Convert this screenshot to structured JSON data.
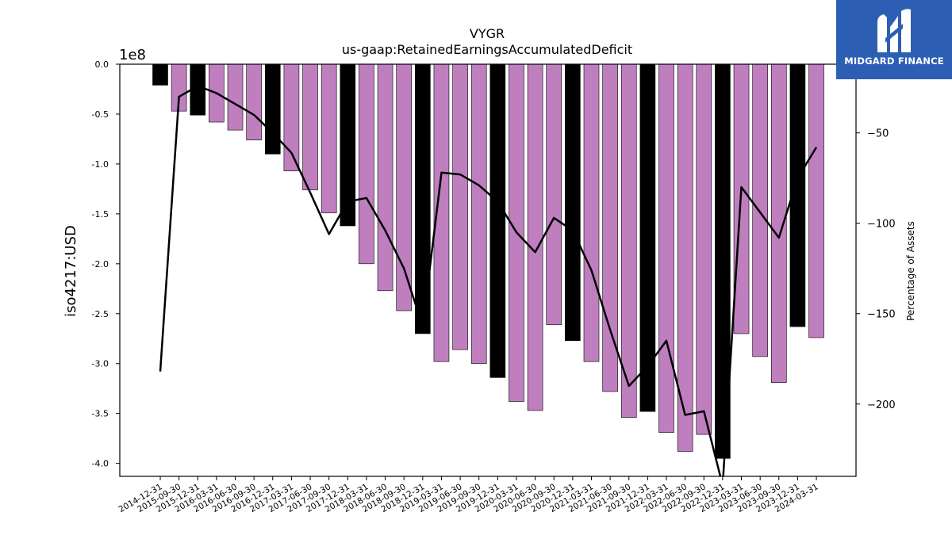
{
  "brand": {
    "name": "MIDGARD FINANCE",
    "logo_icon": "midgard-m-logo-icon",
    "background_color": "#2c5fb3"
  },
  "chart_data": {
    "type": "bar",
    "title": "VYGR",
    "subtitle": "us-gaap:RetainedEarningsAccumulatedDeficit",
    "ylabel": "iso4217:USD",
    "y_offset_label": "1e8",
    "y2label": "Percentage of Assets",
    "ylim": [
      -4.13,
      0
    ],
    "y_ticks": [
      0.0,
      -0.5,
      -1.0,
      -1.5,
      -2.0,
      -2.5,
      -3.0,
      -3.5,
      -4.0
    ],
    "y2lim": [
      -240,
      -12
    ],
    "y2_ticks": [
      -50,
      -100,
      -150,
      -200
    ],
    "categories": [
      "2014-12-31",
      "2015-09-30",
      "2015-12-31",
      "2016-03-31",
      "2016-06-30",
      "2016-09-30",
      "2016-12-31",
      "2017-03-31",
      "2017-06-30",
      "2017-09-30",
      "2017-12-31",
      "2018-03-31",
      "2018-06-30",
      "2018-09-30",
      "2018-12-31",
      "2019-03-31",
      "2019-06-30",
      "2019-09-30",
      "2019-12-31",
      "2020-03-31",
      "2020-06-30",
      "2020-09-30",
      "2020-12-31",
      "2021-03-31",
      "2021-06-30",
      "2021-09-30",
      "2021-12-31",
      "2022-03-31",
      "2022-06-30",
      "2022-09-30",
      "2022-12-31",
      "2023-03-31",
      "2023-06-30",
      "2023-09-30",
      "2023-12-31",
      "2024-03-31"
    ],
    "series": [
      {
        "kind": "bar",
        "axis": "left",
        "values": [
          -0.21,
          -0.47,
          -0.51,
          -0.58,
          -0.66,
          -0.76,
          -0.9,
          -1.07,
          -1.26,
          -1.49,
          -1.62,
          -2.0,
          -2.27,
          -2.47,
          -2.7,
          -2.98,
          -2.86,
          -3.0,
          -3.14,
          -3.38,
          -3.47,
          -2.61,
          -2.77,
          -2.98,
          -3.28,
          -3.54,
          -3.48,
          -3.69,
          -3.88,
          -3.71,
          -3.95,
          -2.7,
          -2.93,
          -3.19,
          -2.63,
          -2.74
        ],
        "colors": [
          "#000000",
          "#bf7fbf",
          "#000000",
          "#bf7fbf",
          "#bf7fbf",
          "#bf7fbf",
          "#000000",
          "#bf7fbf",
          "#bf7fbf",
          "#bf7fbf",
          "#000000",
          "#bf7fbf",
          "#bf7fbf",
          "#bf7fbf",
          "#000000",
          "#bf7fbf",
          "#bf7fbf",
          "#bf7fbf",
          "#000000",
          "#bf7fbf",
          "#bf7fbf",
          "#bf7fbf",
          "#000000",
          "#bf7fbf",
          "#bf7fbf",
          "#bf7fbf",
          "#000000",
          "#bf7fbf",
          "#bf7fbf",
          "#bf7fbf",
          "#000000",
          "#bf7fbf",
          "#bf7fbf",
          "#bf7fbf",
          "#000000",
          "#bf7fbf"
        ]
      },
      {
        "kind": "line",
        "axis": "right",
        "color": "#000000",
        "values": [
          -182,
          -30,
          -24,
          -28,
          -34,
          -40,
          -50,
          -61,
          -83,
          -106,
          -88,
          -86,
          -104,
          -125,
          -157,
          -72,
          -73,
          -79,
          -88,
          -105,
          -116,
          -97,
          -104,
          -126,
          -159,
          -190,
          -179,
          -165,
          -206,
          -204,
          -245,
          -80,
          -94,
          -108,
          -75,
          -58
        ]
      }
    ],
    "grid": false,
    "legend": "none"
  }
}
